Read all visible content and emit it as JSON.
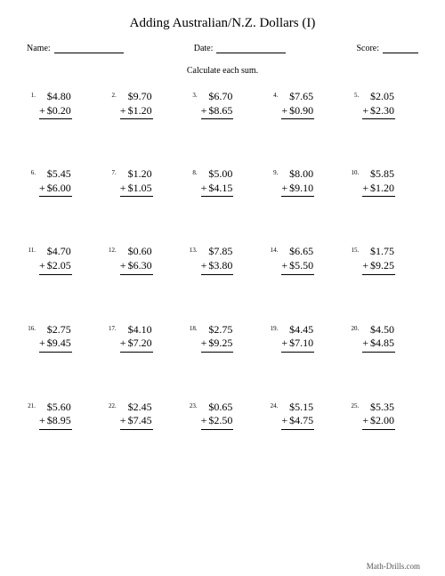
{
  "title": "Adding Australian/N.Z. Dollars (I)",
  "header": {
    "name_label": "Name:",
    "date_label": "Date:",
    "score_label": "Score:"
  },
  "instruction": "Calculate each sum.",
  "problems": [
    {
      "n": "1.",
      "a": "$4.80",
      "b": "$0.20"
    },
    {
      "n": "2.",
      "a": "$9.70",
      "b": "$1.20"
    },
    {
      "n": "3.",
      "a": "$6.70",
      "b": "$8.65"
    },
    {
      "n": "4.",
      "a": "$7.65",
      "b": "$0.90"
    },
    {
      "n": "5.",
      "a": "$2.05",
      "b": "$2.30"
    },
    {
      "n": "6.",
      "a": "$5.45",
      "b": "$6.00"
    },
    {
      "n": "7.",
      "a": "$1.20",
      "b": "$1.05"
    },
    {
      "n": "8.",
      "a": "$5.00",
      "b": "$4.15"
    },
    {
      "n": "9.",
      "a": "$8.00",
      "b": "$9.10"
    },
    {
      "n": "10.",
      "a": "$5.85",
      "b": "$1.20"
    },
    {
      "n": "11.",
      "a": "$4.70",
      "b": "$2.05"
    },
    {
      "n": "12.",
      "a": "$0.60",
      "b": "$6.30"
    },
    {
      "n": "13.",
      "a": "$7.85",
      "b": "$3.80"
    },
    {
      "n": "14.",
      "a": "$6.65",
      "b": "$5.50"
    },
    {
      "n": "15.",
      "a": "$1.75",
      "b": "$9.25"
    },
    {
      "n": "16.",
      "a": "$2.75",
      "b": "$9.45"
    },
    {
      "n": "17.",
      "a": "$4.10",
      "b": "$7.20"
    },
    {
      "n": "18.",
      "a": "$2.75",
      "b": "$9.25"
    },
    {
      "n": "19.",
      "a": "$4.45",
      "b": "$7.10"
    },
    {
      "n": "20.",
      "a": "$4.50",
      "b": "$4.85"
    },
    {
      "n": "21.",
      "a": "$5.60",
      "b": "$8.95"
    },
    {
      "n": "22.",
      "a": "$2.45",
      "b": "$7.45"
    },
    {
      "n": "23.",
      "a": "$0.65",
      "b": "$2.50"
    },
    {
      "n": "24.",
      "a": "$5.15",
      "b": "$4.75"
    },
    {
      "n": "25.",
      "a": "$5.35",
      "b": "$2.00"
    }
  ],
  "footer": "Math-Drills.com",
  "style": {
    "page_bg": "#ffffff",
    "text_color": "#000000",
    "title_fontsize": 15,
    "body_fontsize": 12,
    "small_fontsize": 10,
    "pnum_fontsize": 7,
    "columns": 5,
    "rows": 5,
    "row_gap": 54,
    "col_gap": 14,
    "rule_color": "#000000",
    "footer_color": "#555555"
  }
}
